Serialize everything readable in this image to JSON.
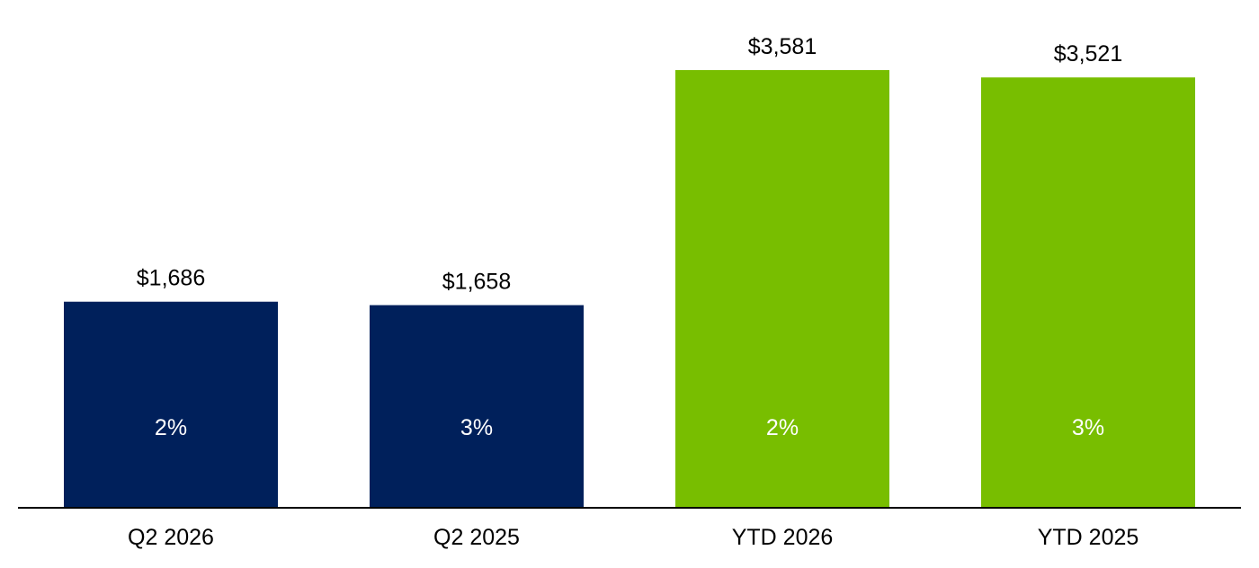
{
  "chart_data": {
    "type": "bar",
    "categories": [
      "Q2 2026",
      "Q2 2025",
      "YTD 2026",
      "YTD 2025"
    ],
    "values": [
      1686,
      1658,
      3581,
      3521
    ],
    "value_labels": [
      "$1,686",
      "$1,658",
      "$3,581",
      "$3,521"
    ],
    "inner_labels": [
      "2%",
      "3%",
      "2%",
      "3%"
    ],
    "bar_colors": [
      "#00205b",
      "#00205b",
      "#78be00",
      "#78be00"
    ],
    "ylim": [
      0,
      3581
    ],
    "grid": false,
    "legend": "none"
  }
}
